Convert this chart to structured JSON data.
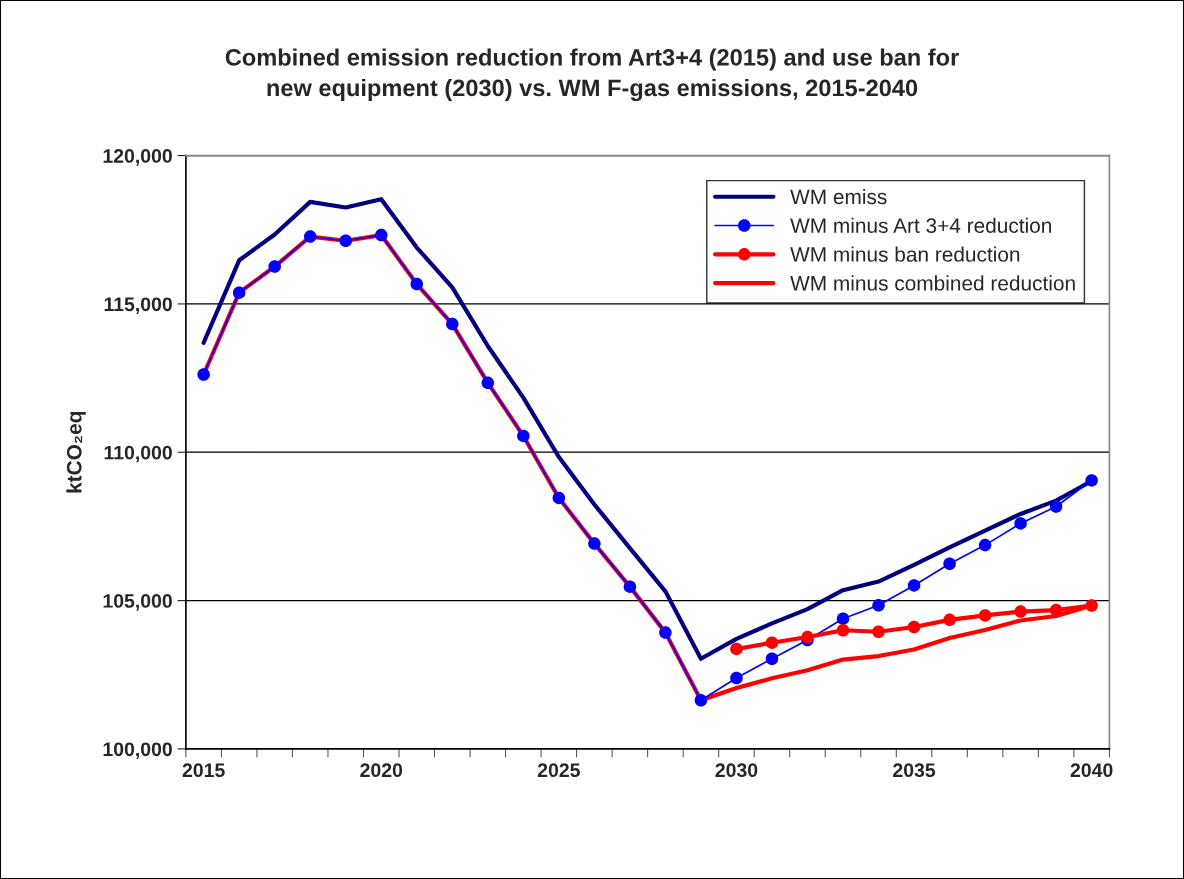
{
  "chart_data": {
    "type": "line",
    "title": "Combined emission reduction from Art3+4 (2015) and use ban for\nnew equipment (2030) vs. WM F-gas emissions, 2015-2040",
    "ylabel": "ktCO₂eq",
    "categories": [
      "2015",
      null,
      null,
      null,
      null,
      "2020",
      null,
      null,
      null,
      null,
      "2025",
      null,
      null,
      null,
      null,
      "2030",
      null,
      null,
      null,
      null,
      "2035",
      null,
      null,
      null,
      null,
      "2040"
    ],
    "ylim": [
      100000,
      120000
    ],
    "yticks": [
      {
        "value": 100000,
        "label": "100,000"
      },
      {
        "value": 105000,
        "label": "105,000"
      },
      {
        "value": 110000,
        "label": "110,000"
      },
      {
        "value": 115000,
        "label": "115,000"
      },
      {
        "value": 120000,
        "label": "120,000"
      }
    ],
    "grid": "y",
    "legend": "top right",
    "series": [
      {
        "name": "WM emiss",
        "color": "#000080",
        "marker": "none",
        "values": [
          113690,
          116470,
          117340,
          118440,
          118250,
          118530,
          116900,
          115560,
          113580,
          111840,
          109840,
          108240,
          106770,
          105310,
          103040,
          103710,
          104230,
          104710,
          105350,
          105640,
          106200,
          106790,
          107360,
          107920,
          108370,
          109030
        ]
      },
      {
        "name": "WM minus Art 3+4 reduction",
        "color": "#0000ff",
        "marker": "circle",
        "values": [
          112620,
          115380,
          116260,
          117270,
          117130,
          117320,
          115670,
          114320,
          112340,
          110550,
          108460,
          106920,
          105470,
          103920,
          101640,
          102390,
          103040,
          103670,
          104390,
          104840,
          105510,
          106240,
          106870,
          107600,
          108170,
          109050
        ]
      },
      {
        "name": "WM minus ban reduction",
        "color": "#ff0000",
        "marker": "circle",
        "values": [
          null,
          null,
          null,
          null,
          null,
          null,
          null,
          null,
          null,
          null,
          null,
          null,
          null,
          null,
          null,
          103370,
          103580,
          103770,
          104000,
          103950,
          104110,
          104350,
          104500,
          104630,
          104680,
          104830
        ]
      },
      {
        "name": "WM minus combined reduction",
        "color": "#ff0000",
        "marker": "none",
        "values": [
          112620,
          115380,
          116260,
          117270,
          117130,
          117320,
          115670,
          114320,
          112340,
          110550,
          108460,
          106920,
          105470,
          103920,
          101640,
          102050,
          102380,
          102650,
          103010,
          103130,
          103350,
          103740,
          104010,
          104330,
          104480,
          104830
        ]
      }
    ]
  }
}
